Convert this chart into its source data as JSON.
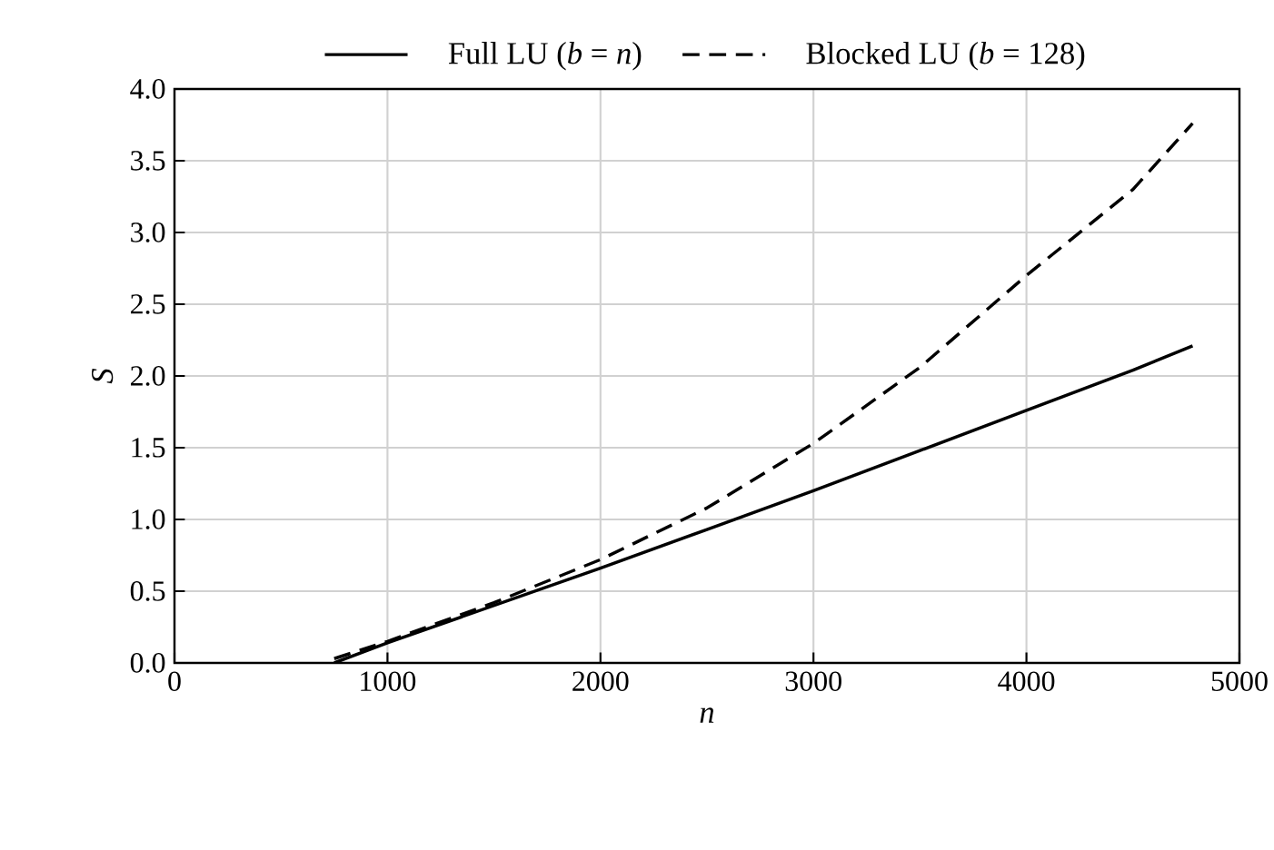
{
  "chart_data": {
    "type": "line",
    "xlabel": "*n*",
    "ylabel": "*S*",
    "x": [
      750,
      1000,
      1500,
      2000,
      2500,
      3000,
      3500,
      4000,
      4500,
      4780
    ],
    "series": [
      {
        "name": "Full LU (*b* = *n*)",
        "color": "#000000",
        "line_style": "solid",
        "values": [
          0.0,
          0.14,
          0.4,
          0.66,
          0.93,
          1.2,
          1.48,
          1.76,
          2.04,
          2.21
        ]
      },
      {
        "name": "Blocked LU (*b* = 128)",
        "color": "#000000",
        "line_style": "dashed",
        "values": [
          0.03,
          0.15,
          0.42,
          0.72,
          1.08,
          1.53,
          2.06,
          2.7,
          3.3,
          3.76
        ]
      }
    ],
    "xlim": [
      0,
      5000
    ],
    "xticks": [
      0,
      1000,
      2000,
      3000,
      4000,
      5000
    ],
    "ylim": [
      0,
      4
    ],
    "yticks": [
      {
        "value": 0,
        "label": "0.0"
      },
      {
        "value": 0.5,
        "label": "0.5"
      },
      {
        "value": 1,
        "label": "1.0"
      },
      {
        "value": 1.5,
        "label": "1.5"
      },
      {
        "value": 2,
        "label": "2.0"
      },
      {
        "value": 2.5,
        "label": "2.5"
      },
      {
        "value": 3,
        "label": "3.0"
      },
      {
        "value": 3.5,
        "label": "3.5"
      },
      {
        "value": 4,
        "label": "4.0"
      }
    ],
    "grid": true,
    "legend": "top",
    "marker": "none"
  }
}
